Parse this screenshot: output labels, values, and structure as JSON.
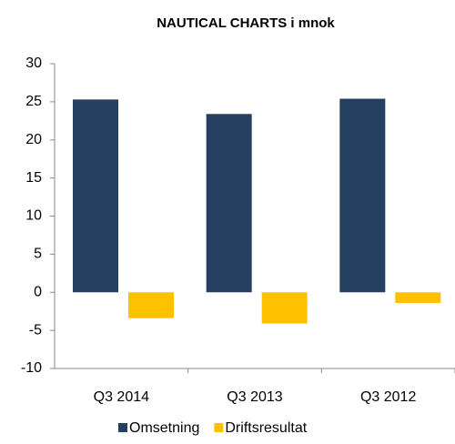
{
  "chart_data": {
    "type": "bar",
    "title": "NAUTICAL CHARTS i mnok",
    "categories": [
      "Q3 2014",
      "Q3 2013",
      "Q3 2012"
    ],
    "series": [
      {
        "name": "Omsetning",
        "color": "#243f60",
        "values": [
          25.3,
          23.4,
          25.4
        ]
      },
      {
        "name": "Driftsresultat",
        "color": "#ffc000",
        "values": [
          -3.4,
          -4.1,
          -1.4
        ]
      }
    ],
    "ylim": [
      -10,
      30
    ],
    "yticks": [
      -10,
      -5,
      0,
      5,
      10,
      15,
      20,
      25,
      30
    ],
    "grid": false,
    "legend": "bottom"
  }
}
